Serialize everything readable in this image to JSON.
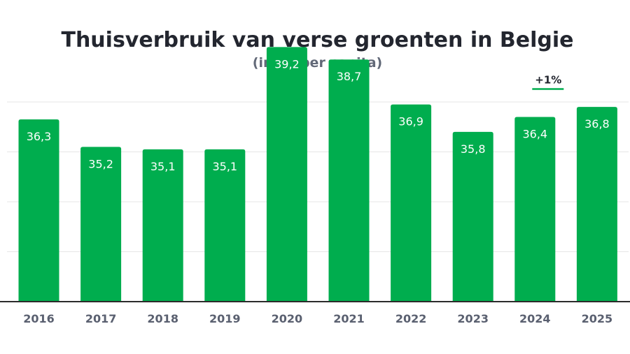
{
  "chart_data": {
    "type": "bar",
    "title": "Thuisverbruik van verse groenten in Belgie",
    "subtitle": "(in kg per capita)",
    "categories": [
      "2016",
      "2017",
      "2018",
      "2019",
      "2020",
      "2021",
      "2022",
      "2023",
      "2024",
      "2025"
    ],
    "values": [
      36.3,
      35.2,
      35.1,
      35.1,
      39.2,
      38.7,
      36.9,
      35.8,
      36.4,
      36.8
    ],
    "value_labels": [
      "36,3",
      "35,2",
      "35,1",
      "35,1",
      "39,2",
      "38,7",
      "36,9",
      "35,8",
      "36,4",
      "36,8"
    ],
    "ylim": [
      29,
      37
    ],
    "grid": true,
    "annotations": [
      {
        "category": "2024",
        "text": "+1%"
      }
    ],
    "colors": {
      "bar": "#00ad4e",
      "grid": "#e6e6e6",
      "axis": "#2b2b2b",
      "annotation_line": "#00ad4e"
    }
  }
}
